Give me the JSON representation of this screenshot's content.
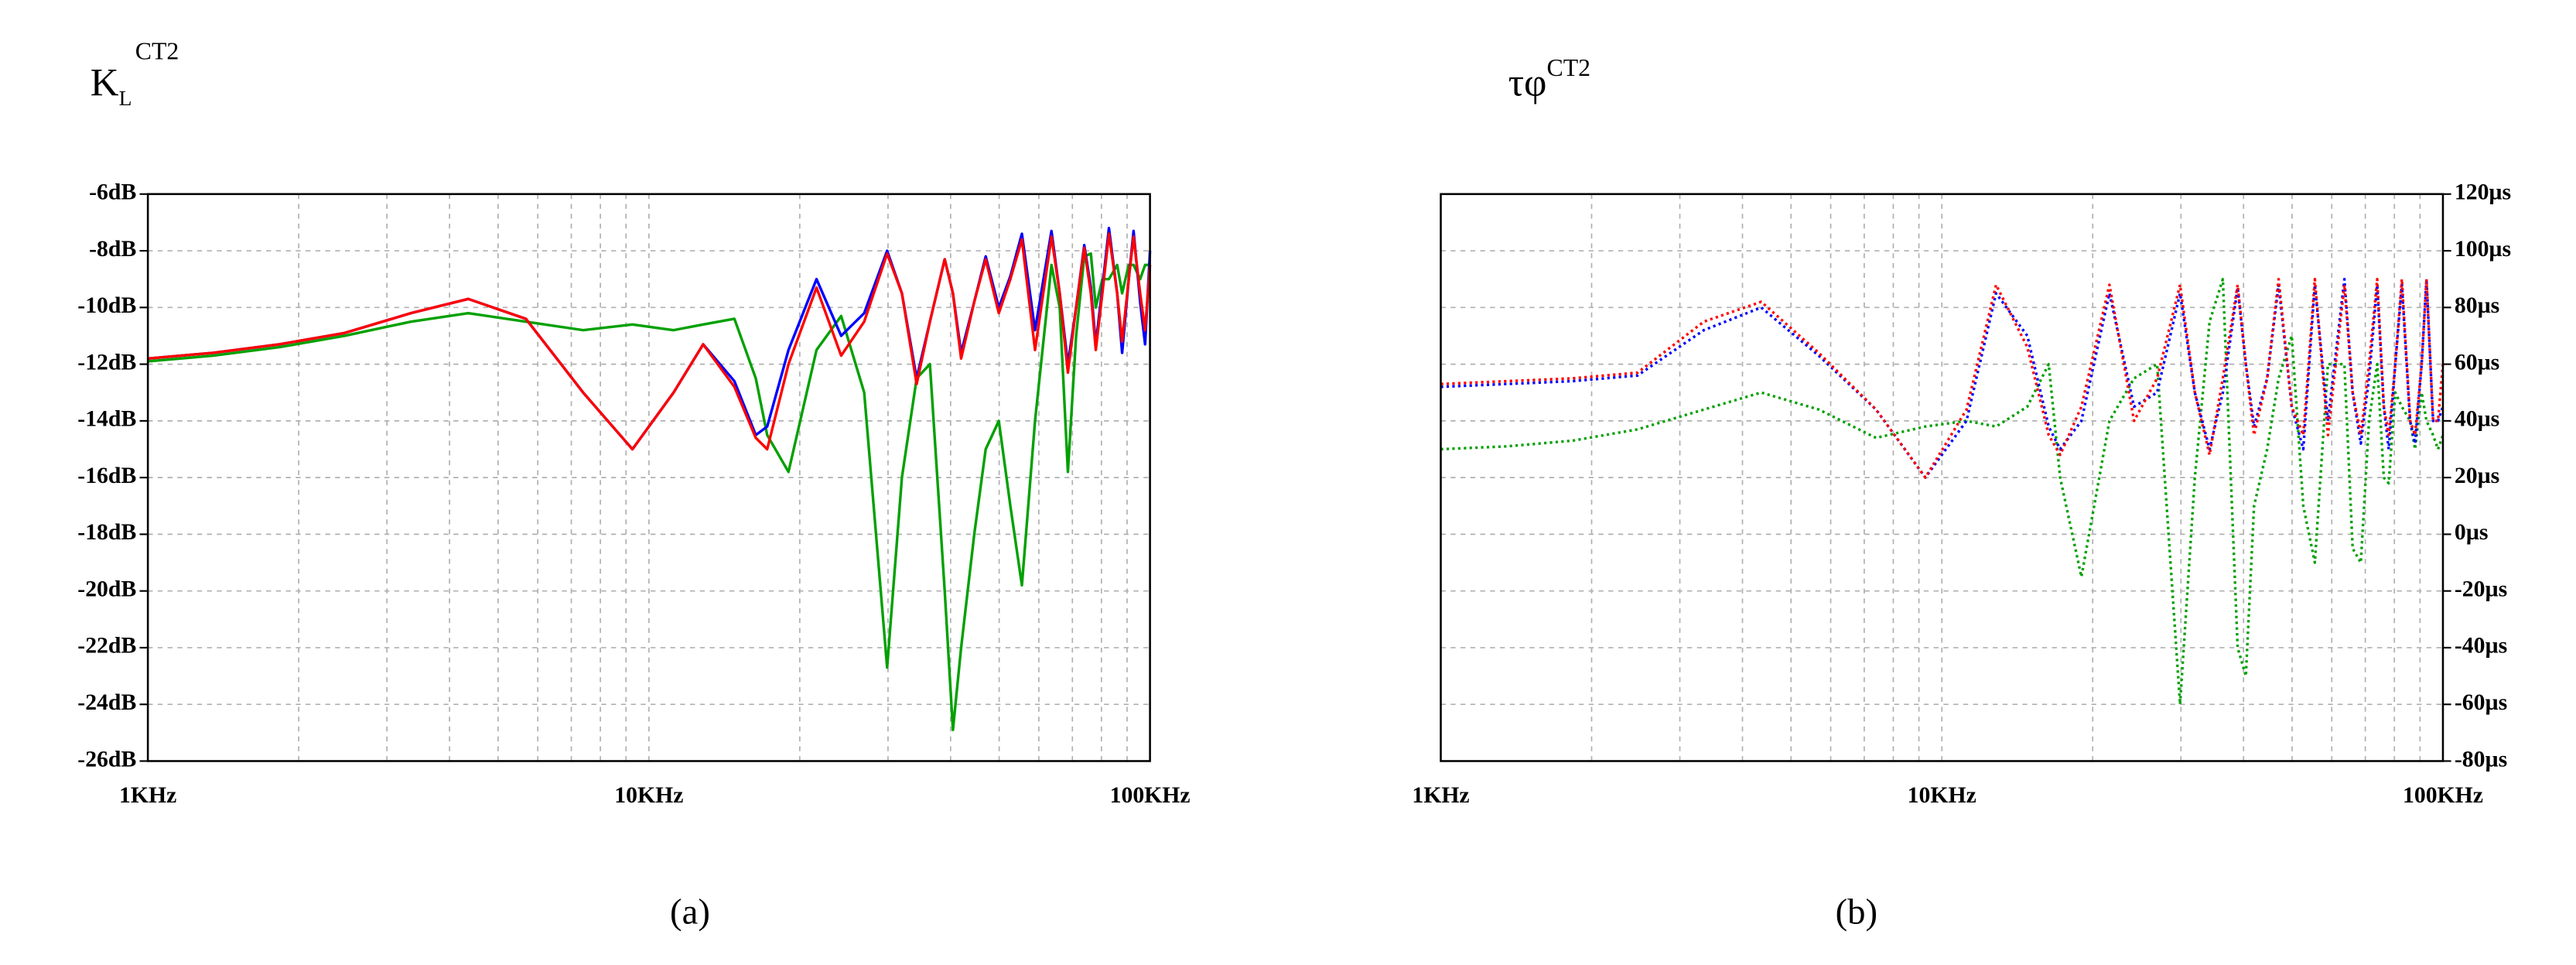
{
  "chart_data": [
    {
      "type": "line",
      "title": "K",
      "title_sub": "L",
      "title_sup": "CT2",
      "caption": "(a)",
      "xscale": "log",
      "grid": true,
      "y_axis_side": "left",
      "line_style": "solid",
      "xlim": [
        1000,
        100000
      ],
      "xticks": [
        {
          "value": 1000,
          "label": "1KHz"
        },
        {
          "value": 10000,
          "label": "10KHz"
        },
        {
          "value": 100000,
          "label": "100KHz"
        }
      ],
      "x_minor_ticks": [
        2000,
        3000,
        4000,
        5000,
        6000,
        7000,
        8000,
        9000,
        20000,
        30000,
        40000,
        50000,
        60000,
        70000,
        80000,
        90000
      ],
      "ylim": [
        -26,
        -6
      ],
      "yticks": [
        {
          "value": -26,
          "label": "-26dB"
        },
        {
          "value": -24,
          "label": "-24dB"
        },
        {
          "value": -22,
          "label": "-22dB"
        },
        {
          "value": -20,
          "label": "-20dB"
        },
        {
          "value": -18,
          "label": "-18dB"
        },
        {
          "value": -16,
          "label": "-16dB"
        },
        {
          "value": -14,
          "label": "-14dB"
        },
        {
          "value": -12,
          "label": "-12dB"
        },
        {
          "value": -10,
          "label": "-10dB"
        },
        {
          "value": -8,
          "label": "-8dB"
        },
        {
          "value": -6,
          "label": "-6dB"
        }
      ],
      "x": [
        1000,
        1350,
        1830,
        2470,
        3350,
        4360,
        5680,
        7390,
        9270,
        11200,
        12830,
        14810,
        16340,
        17220,
        18990,
        21600,
        24190,
        26890,
        29880,
        31980,
        34220,
        36370,
        38930,
        40430,
        41980,
        44590,
        47000,
        49920,
        52640,
        55510,
        58960,
        63590,
        66040,
        68570,
        71210,
        73930,
        76210,
        77950,
        80340,
        82800,
        86000,
        87980,
        90690,
        92730,
        95570,
        97770,
        100000
      ],
      "series": [
        {
          "color": "#00a000",
          "values": [
            -11.9,
            -11.7,
            -11.4,
            -11.0,
            -10.5,
            -10.2,
            -10.5,
            -10.8,
            -10.6,
            -10.8,
            -10.6,
            -10.4,
            -12.5,
            -14.5,
            -15.8,
            -11.5,
            -10.3,
            -13,
            -22.7,
            -16,
            -12.5,
            -12,
            -20,
            -24.9,
            -22,
            -18,
            -15,
            -14,
            -17,
            -19.8,
            -14,
            -8.5,
            -10,
            -15.8,
            -11,
            -8.2,
            -8.1,
            -10,
            -9,
            -9,
            -8.5,
            -9.5,
            -8.5,
            -8.5,
            -9,
            -8.5,
            -8.5
          ]
        },
        {
          "color": "#0000ff",
          "values": [
            -11.8,
            -11.6,
            -11.3,
            -10.9,
            -10.2,
            -9.7,
            -10.4,
            -13.0,
            -15.0,
            -13.0,
            -11.3,
            -12.6,
            -14.5,
            -14.2,
            -11.5,
            -9.0,
            -11.0,
            -10.2,
            -8.0,
            -9.5,
            -12.5,
            -10.5,
            -8.3,
            -9.5,
            -11.6,
            -9.8,
            -8.2,
            -10.0,
            -8.9,
            -7.4,
            -10.8,
            -7.3,
            -9.5,
            -12.0,
            -10,
            -7.8,
            -9.3,
            -11.3,
            -9.3,
            -7.2,
            -9.5,
            -11.6,
            -9,
            -7.3,
            -9.8,
            -11.3,
            -8
          ]
        },
        {
          "color": "#ff0000",
          "values": [
            -11.8,
            -11.6,
            -11.3,
            -10.9,
            -10.2,
            -9.7,
            -10.4,
            -13.0,
            -15.0,
            -13.0,
            -11.3,
            -12.8,
            -14.6,
            -15.0,
            -12.0,
            -9.3,
            -11.7,
            -10.5,
            -8.1,
            -9.5,
            -12.7,
            -10.5,
            -8.3,
            -9.5,
            -11.8,
            -9.8,
            -8.3,
            -10.2,
            -9.0,
            -7.6,
            -11.5,
            -7.5,
            -9.5,
            -12.3,
            -10,
            -7.9,
            -9.5,
            -11.5,
            -9.5,
            -7.4,
            -9.5,
            -11.2,
            -9,
            -7.5,
            -9.5,
            -10.8,
            -8.5
          ]
        }
      ]
    },
    {
      "type": "line",
      "title": "τφ",
      "title_sup": "CT2",
      "caption": "(b)",
      "xscale": "log",
      "grid": true,
      "y_axis_side": "right",
      "line_style": "dotted",
      "xlim": [
        1000,
        100000
      ],
      "xticks": [
        {
          "value": 1000,
          "label": "1KHz"
        },
        {
          "value": 10000,
          "label": "10KHz"
        },
        {
          "value": 100000,
          "label": "100KHz"
        }
      ],
      "x_minor_ticks": [
        2000,
        3000,
        4000,
        5000,
        6000,
        7000,
        8000,
        9000,
        20000,
        30000,
        40000,
        50000,
        60000,
        70000,
        80000,
        90000
      ],
      "ylim": [
        -80,
        120
      ],
      "yticks": [
        {
          "value": -80,
          "label": "-80µs"
        },
        {
          "value": -60,
          "label": "-60µs"
        },
        {
          "value": -40,
          "label": "-40µs"
        },
        {
          "value": -20,
          "label": "-20µs"
        },
        {
          "value": 0,
          "label": "0µs"
        },
        {
          "value": 20,
          "label": "20µs"
        },
        {
          "value": 40,
          "label": "40µs"
        },
        {
          "value": 60,
          "label": "60µs"
        },
        {
          "value": 80,
          "label": "80µs"
        },
        {
          "value": 100,
          "label": "100µs"
        },
        {
          "value": 120,
          "label": "120µs"
        }
      ],
      "x": [
        1000,
        1350,
        1830,
        2470,
        3350,
        4360,
        5680,
        7390,
        9270,
        11200,
        12830,
        14810,
        16340,
        17220,
        18990,
        21600,
        24190,
        26890,
        29880,
        31980,
        34220,
        36370,
        38930,
        40430,
        41980,
        44590,
        47000,
        49920,
        52640,
        55510,
        58960,
        63590,
        66040,
        68570,
        71210,
        73930,
        76210,
        77950,
        80340,
        82800,
        86000,
        87980,
        90690,
        92730,
        95570,
        97770,
        100000
      ],
      "series": [
        {
          "color": "#00a000",
          "values": [
            30,
            31,
            33,
            37,
            44,
            50,
            44,
            34,
            38,
            40,
            38,
            45,
            60,
            20,
            -15,
            40,
            55,
            60,
            -60,
            20,
            75,
            90,
            -40,
            -50,
            10,
            30,
            55,
            70,
            10,
            -10,
            60,
            60,
            -5,
            -10,
            40,
            60,
            20,
            18,
            50,
            45,
            40,
            30,
            50,
            40,
            35,
            30,
            35
          ]
        },
        {
          "color": "#0000ff",
          "values": [
            52,
            53,
            54,
            56,
            72,
            80,
            63,
            44,
            20,
            40,
            85,
            70,
            38,
            30,
            40,
            85,
            45,
            50,
            85,
            50,
            30,
            50,
            87,
            60,
            38,
            55,
            88,
            45,
            30,
            88,
            40,
            90,
            50,
            32,
            55,
            88,
            45,
            30,
            60,
            88,
            40,
            32,
            60,
            90,
            40,
            40,
            45
          ]
        },
        {
          "color": "#ff0000",
          "values": [
            53,
            54,
            55,
            57,
            75,
            82,
            64,
            44,
            20,
            44,
            88,
            66,
            35,
            28,
            45,
            88,
            40,
            55,
            88,
            50,
            28,
            55,
            88,
            60,
            35,
            55,
            90,
            45,
            35,
            90,
            35,
            88,
            50,
            35,
            60,
            90,
            45,
            35,
            60,
            90,
            40,
            35,
            60,
            90,
            40,
            40,
            60
          ]
        }
      ]
    }
  ]
}
